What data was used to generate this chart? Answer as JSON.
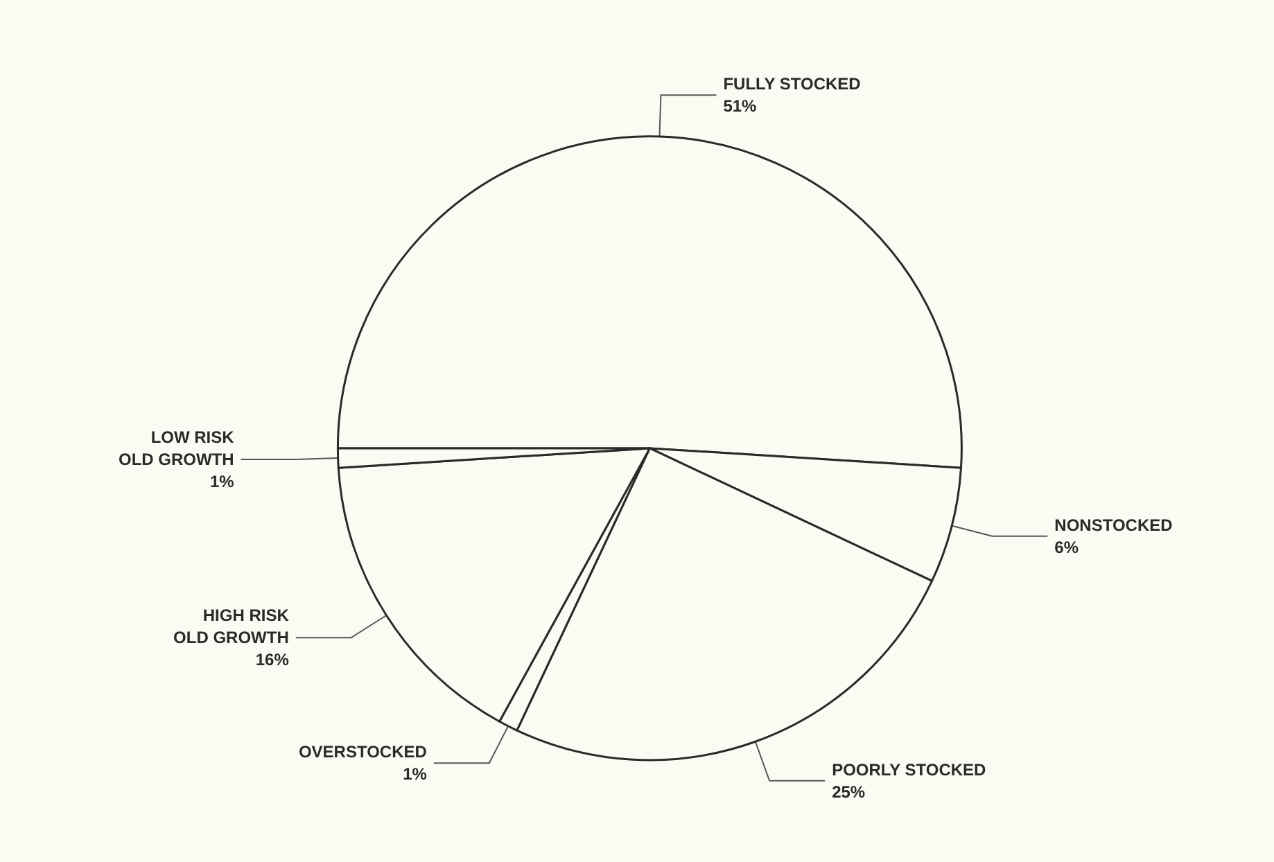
{
  "chart_data": {
    "type": "pie",
    "categories": [
      "FULLY STOCKED",
      "NONSTOCKED",
      "POORLY STOCKED",
      "OVERSTOCKED",
      "HIGH RISK\nOLD GROWTH",
      "LOW RISK\nOLD GROWTH"
    ],
    "values": [
      51,
      6,
      25,
      1,
      16,
      1
    ],
    "value_labels": [
      "51%",
      "6%",
      "25%",
      "1%",
      "16%",
      "1%"
    ],
    "colors": [
      "#fbfbf3",
      "#fbfbf3",
      "#fbfbf3",
      "#fbfbf3",
      "#fbfbf3",
      "#fbfbf3"
    ]
  }
}
